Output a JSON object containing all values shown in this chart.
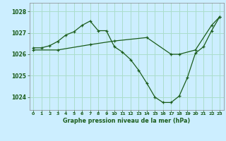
{
  "background_color": "#cceeff",
  "grid_color": "#aaddcc",
  "line_color": "#1a5c1a",
  "title": "Graphe pression niveau de la mer (hPa)",
  "xlim": [
    -0.5,
    23.5
  ],
  "ylim": [
    1023.4,
    1028.4
  ],
  "yticks": [
    1024,
    1025,
    1026,
    1027,
    1028
  ],
  "xticks": [
    0,
    1,
    2,
    3,
    4,
    5,
    6,
    7,
    8,
    9,
    10,
    11,
    12,
    13,
    14,
    15,
    16,
    17,
    18,
    19,
    20,
    21,
    22,
    23
  ],
  "series1_x": [
    0,
    1,
    2,
    3,
    4,
    5,
    6,
    7,
    8,
    9,
    10,
    11,
    12,
    13,
    14,
    15,
    16,
    17,
    18,
    19,
    20,
    21,
    22,
    23
  ],
  "series1_y": [
    1026.3,
    1026.3,
    1026.4,
    1026.6,
    1026.9,
    1027.05,
    1027.35,
    1027.55,
    1027.1,
    1027.1,
    1026.35,
    1026.1,
    1025.75,
    1025.25,
    1024.65,
    1024.0,
    1023.75,
    1023.75,
    1024.05,
    1024.9,
    1026.05,
    1026.35,
    1027.1,
    1027.75
  ],
  "series2_x": [
    0,
    3,
    7,
    10,
    14,
    17,
    18,
    20,
    22,
    23
  ],
  "series2_y": [
    1026.2,
    1026.2,
    1026.45,
    1026.62,
    1026.78,
    1026.0,
    1026.0,
    1026.2,
    1027.35,
    1027.75
  ]
}
